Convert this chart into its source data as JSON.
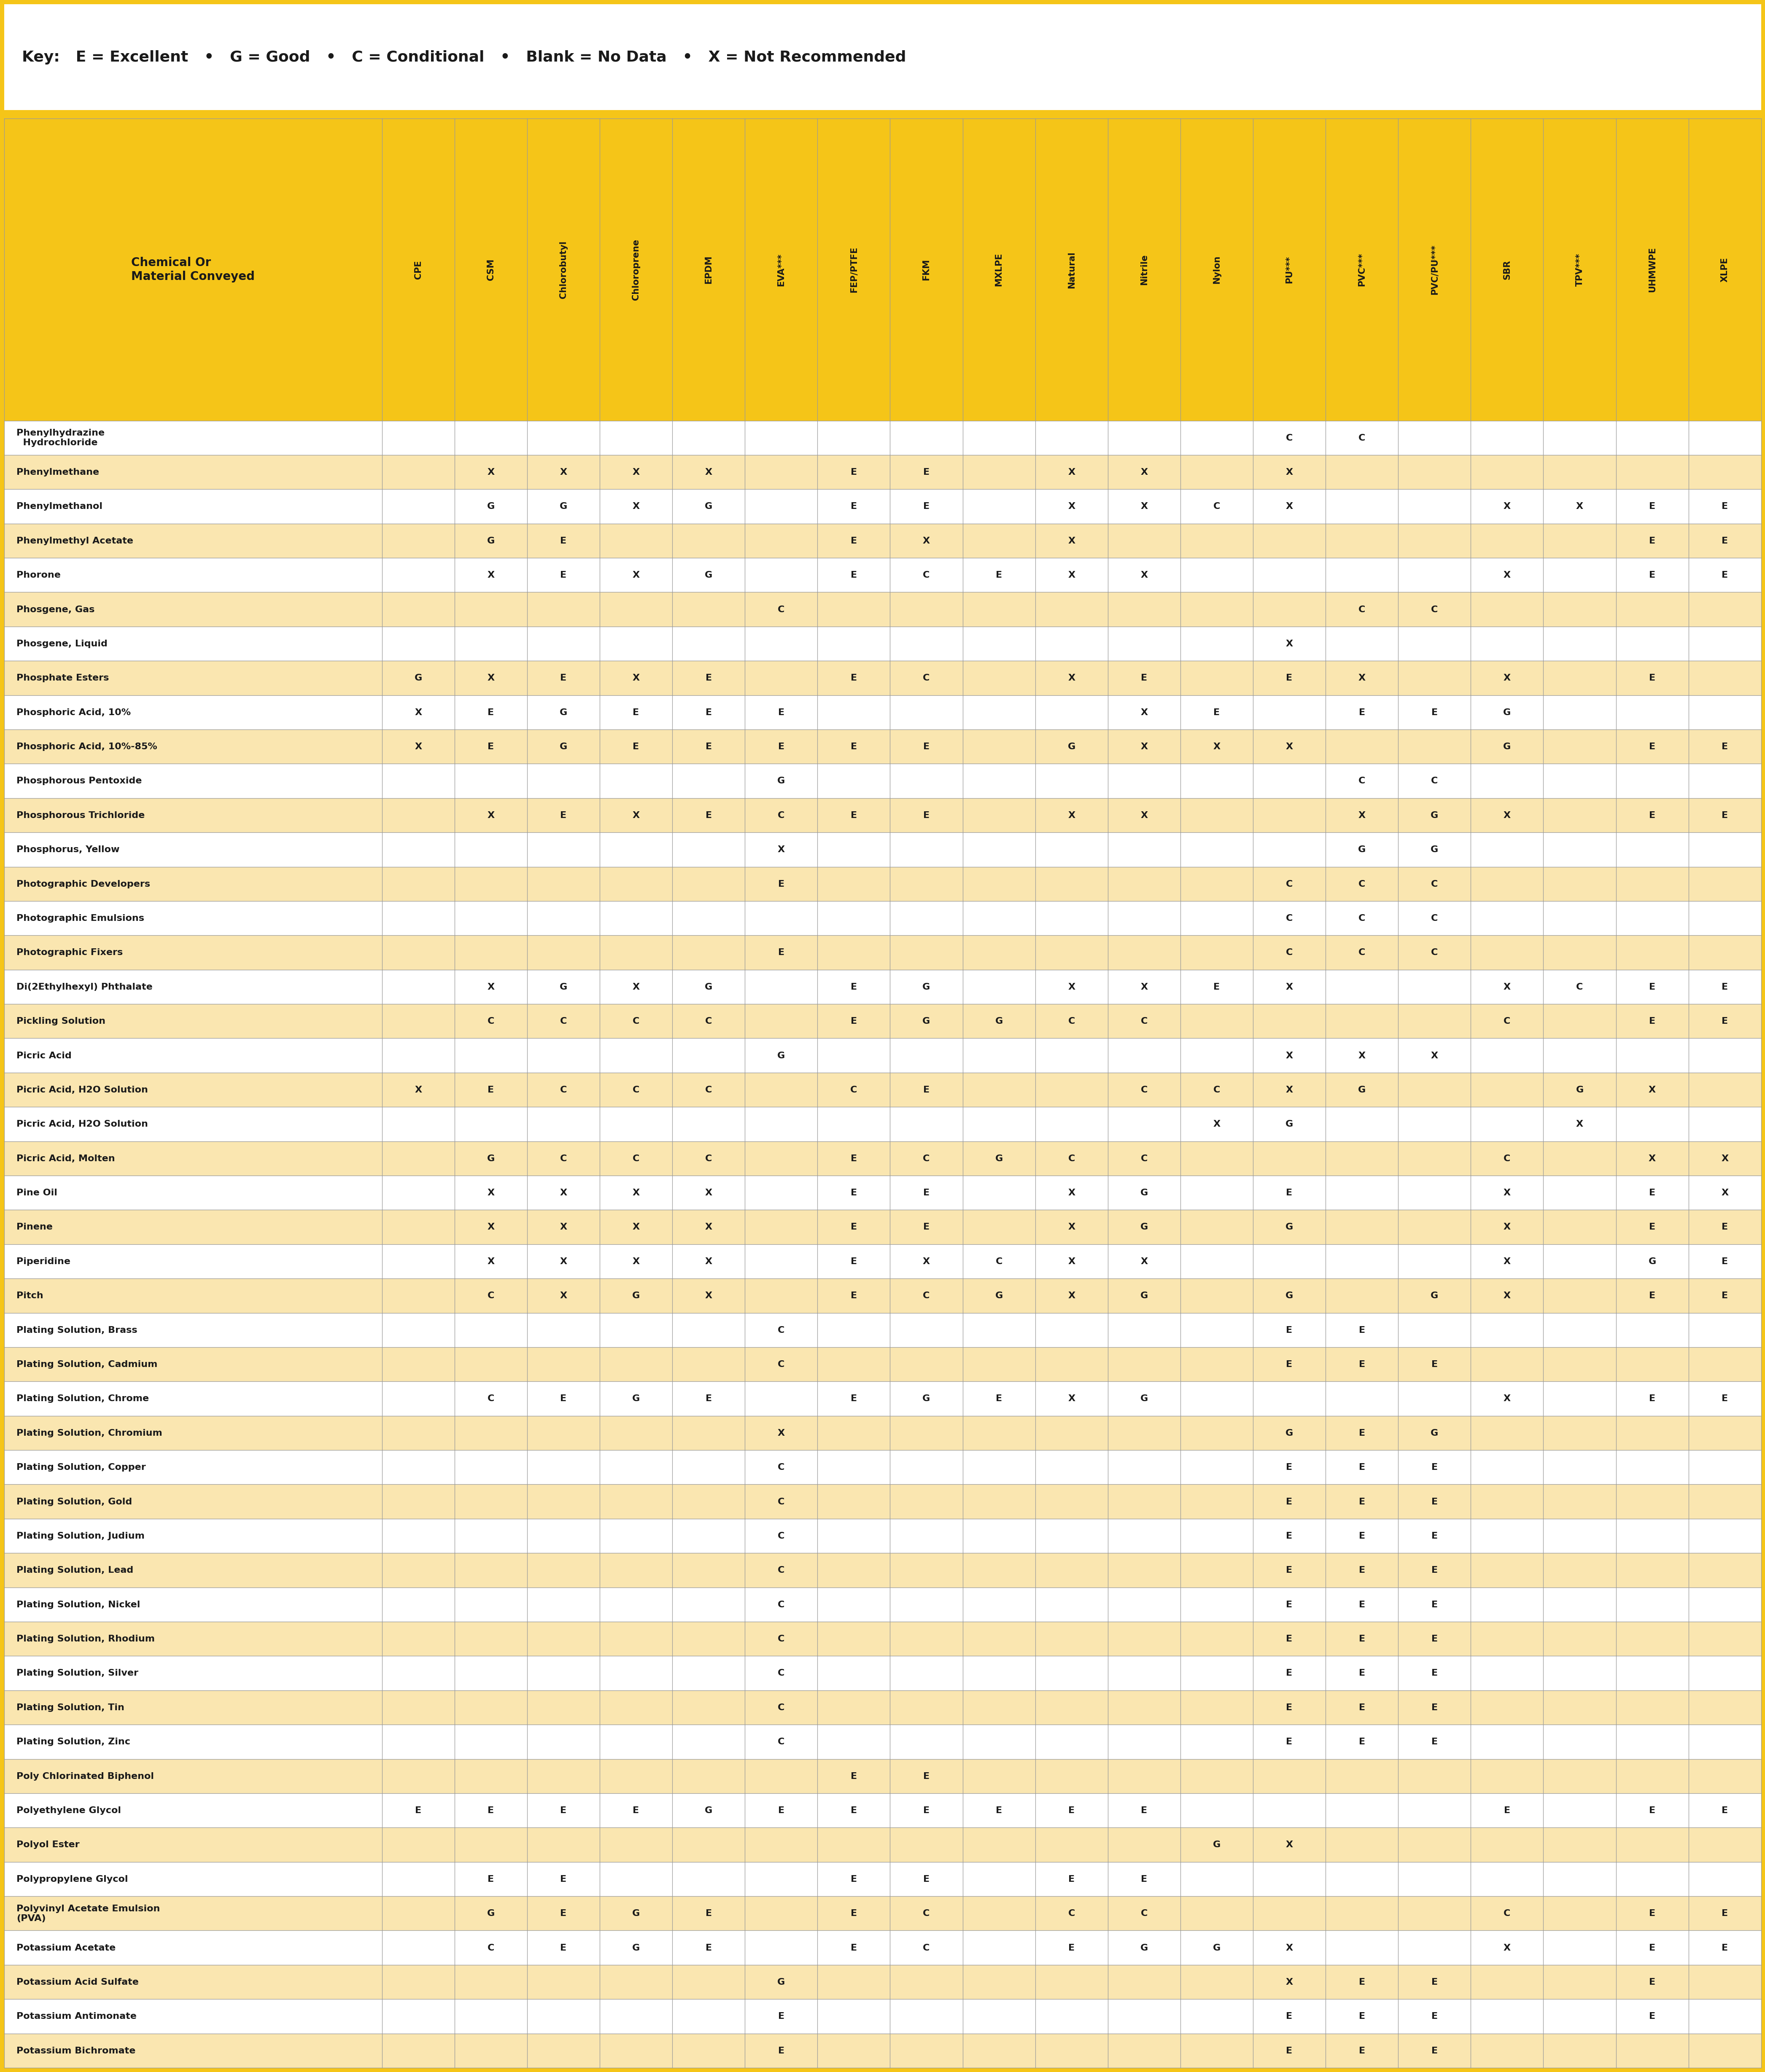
{
  "key_text": "Key:   E = Excellent   •   G = Good   •   C = Conditional   •   Blank = No Data   •   X = Not Recommended",
  "col_labels_rotated": [
    "CPE",
    "CSM",
    "Chlorobutyl",
    "Chloroprene",
    "EPDM",
    "EVA***",
    "FEP/PTFE",
    "FKM",
    "MXLPE",
    "Natural",
    "Nitrile",
    "Nylon",
    "PU***",
    "PVC***",
    "PVC/PU***",
    "SBR",
    "TPV***",
    "UHMWPE",
    "XLPE"
  ],
  "rows": [
    [
      "Phenylhydrazine\n  Hydrochloride",
      "",
      "",
      "",
      "",
      "",
      "",
      "",
      "",
      "",
      "",
      "",
      "",
      "C",
      "C",
      "",
      "",
      "",
      ""
    ],
    [
      "Phenylmethane",
      "",
      "X",
      "X",
      "X",
      "X",
      "",
      "E",
      "E",
      "",
      "X",
      "X",
      "",
      "X",
      "",
      "",
      "",
      "",
      ""
    ],
    [
      "Phenylmethanol",
      "",
      "G",
      "G",
      "X",
      "G",
      "",
      "E",
      "E",
      "",
      "X",
      "X",
      "C",
      "X",
      "",
      "",
      "X",
      "X",
      "E",
      "E"
    ],
    [
      "Phenylmethyl Acetate",
      "",
      "G",
      "E",
      "",
      "",
      "",
      "E",
      "X",
      "",
      "X",
      "",
      "",
      "",
      "",
      "",
      "",
      "",
      "E",
      "E"
    ],
    [
      "Phorone",
      "",
      "X",
      "E",
      "X",
      "G",
      "",
      "E",
      "C",
      "E",
      "X",
      "X",
      "",
      "",
      "",
      "",
      "X",
      "",
      "E",
      "E"
    ],
    [
      "Phosgene, Gas",
      "",
      "",
      "",
      "",
      "",
      "C",
      "",
      "",
      "",
      "",
      "",
      "",
      "",
      "C",
      "C",
      "",
      "",
      "",
      ""
    ],
    [
      "Phosgene, Liquid",
      "",
      "",
      "",
      "",
      "",
      "",
      "",
      "",
      "",
      "",
      "",
      "",
      "X",
      "",
      "",
      "",
      "",
      "",
      ""
    ],
    [
      "Phosphate Esters",
      "G",
      "X",
      "E",
      "X",
      "E",
      "",
      "E",
      "C",
      "",
      "X",
      "E",
      "",
      "E",
      "X",
      "",
      "X",
      "",
      "E",
      ""
    ],
    [
      "Phosphoric Acid, 10%",
      "X",
      "E",
      "G",
      "E",
      "E",
      "E",
      "",
      "",
      "",
      "",
      "X",
      "E",
      "",
      "E",
      "E",
      "G",
      "",
      "",
      ""
    ],
    [
      "Phosphoric Acid, 10%-85%",
      "X",
      "E",
      "G",
      "E",
      "E",
      "E",
      "E",
      "E",
      "",
      "G",
      "X",
      "X",
      "X",
      "",
      "",
      "G",
      "",
      "E",
      "E"
    ],
    [
      "Phosphorous Pentoxide",
      "",
      "",
      "",
      "",
      "",
      "G",
      "",
      "",
      "",
      "",
      "",
      "",
      "",
      "C",
      "C",
      "",
      "",
      "",
      ""
    ],
    [
      "Phosphorous Trichloride",
      "",
      "X",
      "E",
      "X",
      "E",
      "C",
      "E",
      "E",
      "",
      "X",
      "X",
      "",
      "",
      "X",
      "G",
      "X",
      "",
      "E",
      "E"
    ],
    [
      "Phosphorus, Yellow",
      "",
      "",
      "",
      "",
      "",
      "X",
      "",
      "",
      "",
      "",
      "",
      "",
      "",
      "G",
      "G",
      "",
      "",
      "",
      ""
    ],
    [
      "Photographic Developers",
      "",
      "",
      "",
      "",
      "",
      "E",
      "",
      "",
      "",
      "",
      "",
      "",
      "C",
      "C",
      "C",
      "",
      "",
      "",
      ""
    ],
    [
      "Photographic Emulsions",
      "",
      "",
      "",
      "",
      "",
      "",
      "",
      "",
      "",
      "",
      "",
      "",
      "C",
      "C",
      "C",
      "",
      "",
      "",
      ""
    ],
    [
      "Photographic Fixers",
      "",
      "",
      "",
      "",
      "",
      "E",
      "",
      "",
      "",
      "",
      "",
      "",
      "C",
      "C",
      "C",
      "",
      "",
      "",
      ""
    ],
    [
      "Di(2Ethylhexyl) Phthalate",
      "",
      "X",
      "G",
      "X",
      "G",
      "",
      "E",
      "G",
      "",
      "X",
      "X",
      "E",
      "X",
      "",
      "",
      "X",
      "C",
      "E",
      "E"
    ],
    [
      "Pickling Solution",
      "",
      "C",
      "C",
      "C",
      "C",
      "",
      "E",
      "G",
      "G",
      "C",
      "C",
      "",
      "",
      "",
      "",
      "C",
      "",
      "E",
      "E"
    ],
    [
      "Picric Acid",
      "",
      "",
      "",
      "",
      "",
      "G",
      "",
      "",
      "",
      "",
      "",
      "",
      "X",
      "X",
      "X",
      "",
      "",
      "",
      ""
    ],
    [
      "Picric Acid, H2O Solution",
      "X",
      "E",
      "C",
      "C",
      "C",
      "",
      "C",
      "E",
      "",
      "",
      "C",
      "C",
      "X",
      "G",
      "",
      "",
      "G",
      "X",
      "",
      "E"
    ],
    [
      "Picric Acid, H2O Solution",
      "",
      "",
      "",
      "",
      "",
      "",
      "",
      "",
      "",
      "",
      "",
      "X",
      "G",
      "",
      "",
      "",
      "X",
      "",
      ""
    ],
    [
      "Picric Acid, Molten",
      "",
      "G",
      "C",
      "C",
      "C",
      "",
      "E",
      "C",
      "G",
      "C",
      "C",
      "",
      "",
      "",
      "",
      "C",
      "",
      "X",
      "X"
    ],
    [
      "Pine Oil",
      "",
      "X",
      "X",
      "X",
      "X",
      "",
      "E",
      "E",
      "",
      "X",
      "G",
      "",
      "E",
      "",
      "",
      "X",
      "",
      "E",
      "X"
    ],
    [
      "Pinene",
      "",
      "X",
      "X",
      "X",
      "X",
      "",
      "E",
      "E",
      "",
      "X",
      "G",
      "",
      "G",
      "",
      "",
      "X",
      "",
      "E",
      "E"
    ],
    [
      "Piperidine",
      "",
      "X",
      "X",
      "X",
      "X",
      "",
      "E",
      "X",
      "C",
      "X",
      "X",
      "",
      "",
      "",
      "",
      "X",
      "",
      "G",
      "E"
    ],
    [
      "Pitch",
      "",
      "C",
      "X",
      "G",
      "X",
      "",
      "E",
      "C",
      "G",
      "X",
      "G",
      "",
      "G",
      "",
      "G",
      "X",
      "",
      "E",
      "E"
    ],
    [
      "Plating Solution, Brass",
      "",
      "",
      "",
      "",
      "",
      "C",
      "",
      "",
      "",
      "",
      "",
      "",
      "E",
      "E",
      "",
      "",
      "",
      "",
      ""
    ],
    [
      "Plating Solution, Cadmium",
      "",
      "",
      "",
      "",
      "",
      "C",
      "",
      "",
      "",
      "",
      "",
      "",
      "E",
      "E",
      "E",
      "",
      "",
      "",
      ""
    ],
    [
      "Plating Solution, Chrome",
      "",
      "C",
      "E",
      "G",
      "E",
      "",
      "E",
      "G",
      "E",
      "X",
      "G",
      "",
      "",
      "",
      "",
      "X",
      "",
      "E",
      "E"
    ],
    [
      "Plating Solution, Chromium",
      "",
      "",
      "",
      "",
      "",
      "X",
      "",
      "",
      "",
      "",
      "",
      "",
      "G",
      "E",
      "G",
      "",
      "",
      "",
      ""
    ],
    [
      "Plating Solution, Copper",
      "",
      "",
      "",
      "",
      "",
      "C",
      "",
      "",
      "",
      "",
      "",
      "",
      "E",
      "E",
      "E",
      "",
      "",
      "",
      ""
    ],
    [
      "Plating Solution, Gold",
      "",
      "",
      "",
      "",
      "",
      "C",
      "",
      "",
      "",
      "",
      "",
      "",
      "E",
      "E",
      "E",
      "",
      "",
      "",
      ""
    ],
    [
      "Plating Solution, Judium",
      "",
      "",
      "",
      "",
      "",
      "C",
      "",
      "",
      "",
      "",
      "",
      "",
      "E",
      "E",
      "E",
      "",
      "",
      "",
      ""
    ],
    [
      "Plating Solution, Lead",
      "",
      "",
      "",
      "",
      "",
      "C",
      "",
      "",
      "",
      "",
      "",
      "",
      "E",
      "E",
      "E",
      "",
      "",
      "",
      ""
    ],
    [
      "Plating Solution, Nickel",
      "",
      "",
      "",
      "",
      "",
      "C",
      "",
      "",
      "",
      "",
      "",
      "",
      "E",
      "E",
      "E",
      "",
      "",
      "",
      ""
    ],
    [
      "Plating Solution, Rhodium",
      "",
      "",
      "",
      "",
      "",
      "C",
      "",
      "",
      "",
      "",
      "",
      "",
      "E",
      "E",
      "E",
      "",
      "",
      "",
      ""
    ],
    [
      "Plating Solution, Silver",
      "",
      "",
      "",
      "",
      "",
      "C",
      "",
      "",
      "",
      "",
      "",
      "",
      "E",
      "E",
      "E",
      "",
      "",
      "",
      ""
    ],
    [
      "Plating Solution, Tin",
      "",
      "",
      "",
      "",
      "",
      "C",
      "",
      "",
      "",
      "",
      "",
      "",
      "E",
      "E",
      "E",
      "",
      "",
      "",
      ""
    ],
    [
      "Plating Solution, Zinc",
      "",
      "",
      "",
      "",
      "",
      "C",
      "",
      "",
      "",
      "",
      "",
      "",
      "E",
      "E",
      "E",
      "",
      "",
      "",
      ""
    ],
    [
      "Poly Chlorinated Biphenol",
      "",
      "",
      "",
      "",
      "",
      "",
      "E",
      "E",
      "",
      "",
      "",
      "",
      "",
      "",
      "",
      "",
      "",
      "",
      ""
    ],
    [
      "Polyethylene Glycol",
      "E",
      "E",
      "E",
      "E",
      "G",
      "E",
      "E",
      "E",
      "E",
      "E",
      "E",
      "",
      "",
      "",
      "",
      "E",
      "",
      "E",
      "E"
    ],
    [
      "Polyol Ester",
      "",
      "",
      "",
      "",
      "",
      "",
      "",
      "",
      "",
      "",
      "",
      "G",
      "X",
      "",
      "",
      "",
      "",
      "",
      ""
    ],
    [
      "Polypropylene Glycol",
      "",
      "E",
      "E",
      "",
      "",
      "",
      "E",
      "E",
      "",
      "E",
      "E",
      "",
      "",
      "",
      "",
      "",
      "",
      "",
      ""
    ],
    [
      "Polyvinyl Acetate Emulsion\n(PVA)",
      "",
      "G",
      "E",
      "G",
      "E",
      "",
      "E",
      "C",
      "",
      "C",
      "C",
      "",
      "",
      "",
      "",
      "C",
      "",
      "E",
      "E"
    ],
    [
      "Potassium Acetate",
      "",
      "C",
      "E",
      "G",
      "E",
      "",
      "E",
      "C",
      "",
      "E",
      "G",
      "G",
      "X",
      "",
      "",
      "X",
      "",
      "E",
      "E"
    ],
    [
      "Potassium Acid Sulfate",
      "",
      "",
      "",
      "",
      "",
      "G",
      "",
      "",
      "",
      "",
      "",
      "",
      "X",
      "E",
      "E",
      "",
      "",
      "E",
      ""
    ],
    [
      "Potassium Antimonate",
      "",
      "",
      "",
      "",
      "",
      "E",
      "",
      "",
      "",
      "",
      "",
      "",
      "E",
      "E",
      "E",
      "",
      "",
      "E",
      ""
    ],
    [
      "Potassium Bichromate",
      "",
      "",
      "",
      "",
      "",
      "E",
      "",
      "",
      "",
      "",
      "",
      "",
      "E",
      "E",
      "E",
      "",
      "",
      "",
      ""
    ]
  ],
  "bg_color_header": "#F5C518",
  "bg_color_odd": "#FFFFFF",
  "bg_color_even": "#FAE6B0",
  "text_color": "#1A1A1A",
  "border_color": "#999999",
  "outer_border_color": "#F5C518",
  "key_bg": "#FFFFFF"
}
